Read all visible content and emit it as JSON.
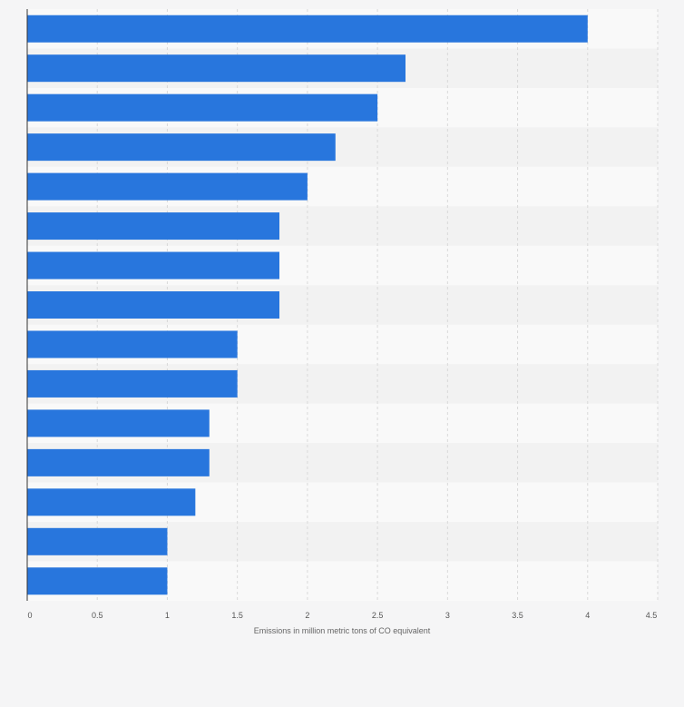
{
  "chart_data": {
    "type": "bar",
    "orientation": "horizontal",
    "title": "",
    "xlabel": "Emissions in million metric tons of CO equivalent",
    "ylabel": "",
    "xlim": [
      0,
      4.5
    ],
    "x_ticks": [
      "0",
      "0.5",
      "1",
      "1.5",
      "2",
      "2.5",
      "3",
      "3.5",
      "4",
      "4.5"
    ],
    "tick_values": [
      0,
      0.5,
      1,
      1.5,
      2,
      2.5,
      3,
      3.5,
      4,
      4.5
    ],
    "values": [
      4.0,
      2.7,
      2.5,
      2.2,
      2.0,
      1.8,
      1.8,
      1.8,
      1.5,
      1.5,
      1.3,
      1.3,
      1.2,
      1.0,
      1.0
    ],
    "grid": true,
    "legend": "none",
    "colors": {
      "bar": "#2876dd",
      "band_light": "#f9f9f9",
      "band_dark": "#f2f2f2",
      "background": "#f5f5f6",
      "grid": "#d9d9d9",
      "axis": "#333333"
    }
  }
}
